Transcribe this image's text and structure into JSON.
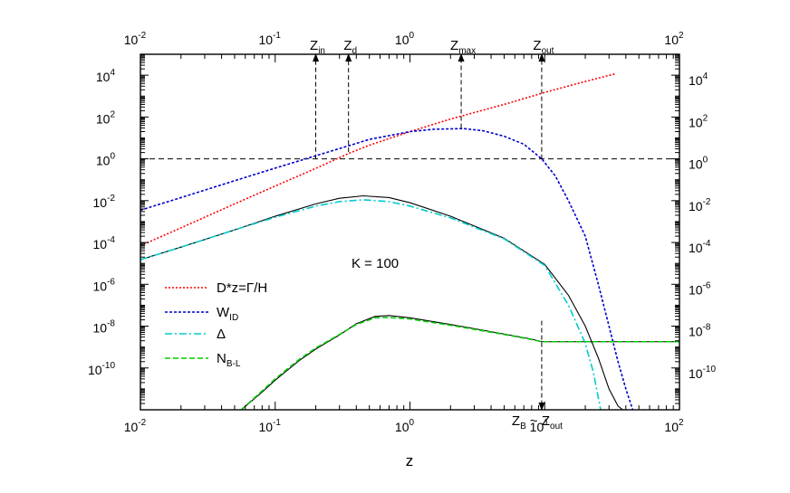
{
  "chart_data": {
    "type": "line",
    "title": "",
    "xlabel": "z",
    "ylabel": "",
    "x_scale": "log",
    "y_scale": "log",
    "xlim": [
      0.01,
      100
    ],
    "ylim": [
      1e-12,
      100000.0
    ],
    "grid": false,
    "legend_position": "center-left",
    "annotation_text": "K  = 100",
    "x_ticks": [
      {
        "value": 0.01,
        "base": "10",
        "exp": "-2"
      },
      {
        "value": 0.1,
        "base": "10",
        "exp": "-1"
      },
      {
        "value": 1,
        "base": "10",
        "exp": "0"
      },
      {
        "value": 10,
        "base": "10",
        "exp": "1"
      },
      {
        "value": 100,
        "base": "10",
        "exp": "2"
      }
    ],
    "x_ticks_top": [
      {
        "value": 0.01,
        "base": "10",
        "exp": "-2"
      },
      {
        "value": 0.1,
        "base": "10",
        "exp": "-1"
      },
      {
        "value": 1,
        "base": "10",
        "exp": "0"
      },
      {
        "value": 100,
        "base": "10",
        "exp": "2"
      }
    ],
    "y_ticks": [
      {
        "value": 1e-10,
        "base": "10",
        "exp": "-10"
      },
      {
        "value": 1e-08,
        "base": "10",
        "exp": "-8"
      },
      {
        "value": 1e-06,
        "base": "10",
        "exp": "-6"
      },
      {
        "value": 0.0001,
        "base": "10",
        "exp": "-4"
      },
      {
        "value": 0.01,
        "base": "10",
        "exp": "-2"
      },
      {
        "value": 1,
        "base": "10",
        "exp": "0"
      },
      {
        "value": 100,
        "base": "10",
        "exp": "2"
      },
      {
        "value": 10000,
        "base": "10",
        "exp": "4"
      }
    ],
    "reference_lines": [
      {
        "orientation": "horizontal",
        "y": 1,
        "x_from": 0.01,
        "x_to": 100
      }
    ],
    "markers": [
      {
        "base": "Z",
        "sub": "in",
        "x": 0.2,
        "y_from": 1,
        "direction": "up"
      },
      {
        "base": "Z",
        "sub": "d",
        "x": 0.35,
        "y_from": 2.1,
        "direction": "up"
      },
      {
        "base": "Z",
        "sub": "max",
        "x": 2.4,
        "y_from": 30,
        "direction": "up"
      },
      {
        "base": "Z",
        "sub": "out",
        "x": 9.5,
        "y_from": 1,
        "direction": "up"
      },
      {
        "base": "Z",
        "sub": "B",
        "mid": " ~ ",
        "base2": "Z",
        "sub2": "out",
        "x": 9.5,
        "y_from": 1.8e-08,
        "direction": "down"
      }
    ],
    "legend": [
      {
        "label": "D*z=Γ/H",
        "sub": "",
        "color": "#ff0000",
        "dash": "2,2"
      },
      {
        "label": "W",
        "sub": "ID",
        "color": "#0000cc",
        "dash": "3,2"
      },
      {
        "label": "Δ",
        "sub": "",
        "color": "#00cccc",
        "dash": "8,3,2,3"
      },
      {
        "label": "N",
        "sub": "B-L",
        "color": "#00cc00",
        "dash": "6,3"
      }
    ],
    "series": [
      {
        "name": "D*z=Γ/H",
        "color": "#ff0000",
        "dash": "2,2",
        "x": [
          0.01,
          0.02,
          0.05,
          0.1,
          0.2,
          0.35,
          0.5,
          1,
          2,
          5,
          10,
          20,
          34
        ],
        "y": [
          7e-05,
          0.0005,
          0.007,
          0.05,
          0.35,
          1.8,
          4.5,
          20,
          80,
          400,
          1500,
          5000,
          12000
        ]
      },
      {
        "name": "W_ID",
        "color": "#0000cc",
        "dash": "3,2",
        "x": [
          0.01,
          0.02,
          0.05,
          0.1,
          0.2,
          0.35,
          0.5,
          1,
          1.5,
          2.5,
          3.5,
          5,
          7,
          9.5,
          12,
          15,
          20,
          25,
          30,
          35,
          40,
          45
        ],
        "y": [
          0.0035,
          0.014,
          0.09,
          0.36,
          1.4,
          4.2,
          8.5,
          20,
          26,
          28,
          22,
          12,
          5,
          1,
          0.15,
          0.01,
          0.0002,
          1e-06,
          1e-08,
          2e-10,
          1e-11,
          1e-12
        ]
      },
      {
        "name": "Δ",
        "color": "#00cccc",
        "dash": "8,3,2,3",
        "x": [
          0.01,
          0.02,
          0.05,
          0.1,
          0.2,
          0.3,
          0.45,
          0.7,
          1,
          2,
          5,
          10,
          15,
          20,
          23,
          26
        ],
        "y": [
          1.5e-05,
          6e-05,
          0.0004,
          0.0016,
          0.0055,
          0.009,
          0.011,
          0.009,
          0.0055,
          0.0015,
          0.00015,
          8e-06,
          1e-07,
          1.5e-09,
          6e-11,
          1e-12
        ]
      },
      {
        "name": "N_B-L",
        "color": "#00cc00",
        "dash": "6,3",
        "x": [
          0.056,
          0.08,
          0.1,
          0.15,
          0.2,
          0.3,
          0.4,
          0.55,
          0.7,
          1,
          2,
          5,
          8,
          9.5,
          15,
          30,
          100
        ],
        "y": [
          1e-12,
          8e-12,
          3e-11,
          2.5e-10,
          9e-10,
          4e-09,
          1.2e-08,
          2.5e-08,
          2.6e-08,
          2.2e-08,
          1.1e-08,
          4e-09,
          2.3e-09,
          1.8e-09,
          1.8e-09,
          1.8e-09,
          1.8e-09
        ]
      },
      {
        "name": "",
        "color": "#000000",
        "dash": "",
        "x": [
          0.056,
          0.08,
          0.1,
          0.15,
          0.2,
          0.3,
          0.4,
          0.55,
          0.7,
          1,
          2,
          5,
          8,
          9.5,
          15,
          30,
          100
        ],
        "y": [
          1e-12,
          7e-12,
          2.6e-11,
          2.2e-10,
          8e-10,
          3.8e-09,
          1.3e-08,
          2.9e-08,
          3.2e-08,
          2.5e-08,
          1.2e-08,
          4.2e-09,
          2.4e-09,
          1.8e-09,
          1.8e-09,
          1.8e-09,
          1.8e-09
        ]
      },
      {
        "name": "",
        "color": "#000000",
        "dash": "",
        "x": [
          0.01,
          0.02,
          0.05,
          0.1,
          0.2,
          0.3,
          0.45,
          0.7,
          1,
          2,
          5,
          10,
          15,
          20,
          25,
          30,
          35,
          38
        ],
        "y": [
          1.5e-05,
          6e-05,
          0.0004,
          0.0018,
          0.007,
          0.013,
          0.017,
          0.014,
          0.008,
          0.0018,
          0.00016,
          9e-06,
          3e-07,
          1e-08,
          3e-10,
          1e-11,
          1.5e-12,
          1e-12
        ]
      }
    ]
  }
}
